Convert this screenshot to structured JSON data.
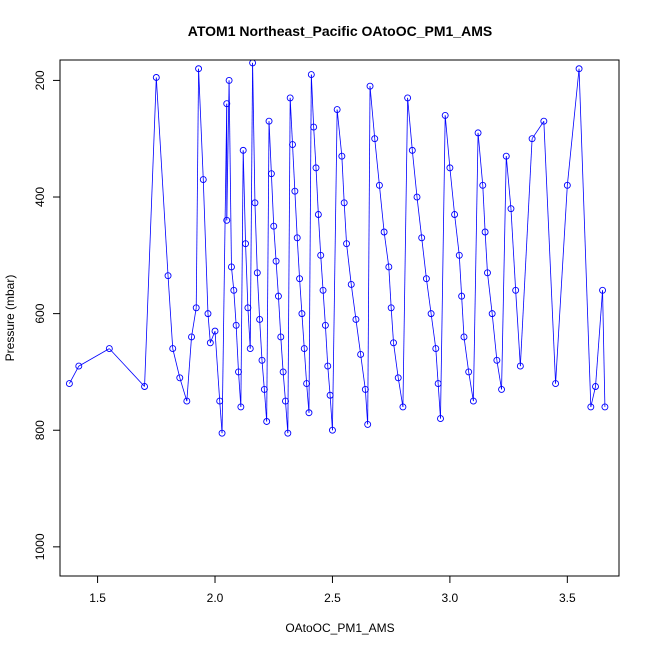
{
  "chart_data": {
    "type": "scatter",
    "title": "ATOM1 Northeast_Pacific OAtoOC_PM1_AMS",
    "xlabel": "OAtoOC_PM1_AMS",
    "ylabel": "Pressure (mbar)",
    "xlim": [
      1.34,
      3.72
    ],
    "ylim": [
      1050,
      165
    ],
    "y_reversed": true,
    "x_ticks": [
      1.5,
      2.0,
      2.5,
      3.0,
      3.5
    ],
    "x_tick_labels": [
      "1.5",
      "2.0",
      "2.5",
      "3.0",
      "3.5"
    ],
    "y_ticks": [
      200,
      400,
      600,
      800,
      1000
    ],
    "y_tick_labels": [
      "200",
      "400",
      "600",
      "800",
      "1000"
    ],
    "grid": false,
    "legend": "none",
    "marker": "open-circle",
    "connected": true,
    "color": "#0000FF",
    "horizontal_segment_color": "#000000",
    "series": [
      {
        "points": [
          [
            1.38,
            720
          ],
          [
            1.42,
            690
          ],
          [
            1.55,
            660
          ],
          [
            1.7,
            725
          ],
          [
            1.75,
            195
          ],
          [
            1.8,
            535
          ],
          [
            1.82,
            660
          ],
          [
            1.85,
            710
          ],
          [
            1.88,
            750
          ],
          [
            1.9,
            640
          ],
          [
            1.92,
            590
          ],
          [
            1.93,
            180
          ],
          [
            1.95,
            370
          ],
          [
            1.97,
            600
          ],
          [
            1.98,
            650
          ],
          [
            2.0,
            630
          ],
          [
            2.02,
            750
          ],
          [
            2.03,
            805
          ],
          [
            2.05,
            240
          ],
          [
            2.05,
            440
          ],
          [
            2.06,
            200
          ],
          [
            2.07,
            520
          ],
          [
            2.08,
            560
          ],
          [
            2.09,
            620
          ],
          [
            2.1,
            700
          ],
          [
            2.11,
            760
          ],
          [
            2.12,
            320
          ],
          [
            2.13,
            480
          ],
          [
            2.14,
            590
          ],
          [
            2.15,
            660
          ],
          [
            2.16,
            170
          ],
          [
            2.17,
            410
          ],
          [
            2.18,
            530
          ],
          [
            2.19,
            610
          ],
          [
            2.2,
            680
          ],
          [
            2.21,
            730
          ],
          [
            2.22,
            785
          ],
          [
            2.23,
            270
          ],
          [
            2.24,
            360
          ],
          [
            2.25,
            450
          ],
          [
            2.26,
            510
          ],
          [
            2.27,
            570
          ],
          [
            2.28,
            640
          ],
          [
            2.29,
            700
          ],
          [
            2.3,
            750
          ],
          [
            2.31,
            805
          ],
          [
            2.32,
            230
          ],
          [
            2.33,
            310
          ],
          [
            2.34,
            390
          ],
          [
            2.35,
            470
          ],
          [
            2.36,
            540
          ],
          [
            2.37,
            600
          ],
          [
            2.38,
            660
          ],
          [
            2.39,
            720
          ],
          [
            2.4,
            770
          ],
          [
            2.41,
            190
          ],
          [
            2.42,
            280
          ],
          [
            2.43,
            350
          ],
          [
            2.44,
            430
          ],
          [
            2.45,
            500
          ],
          [
            2.46,
            560
          ],
          [
            2.47,
            620
          ],
          [
            2.48,
            690
          ],
          [
            2.49,
            740
          ],
          [
            2.5,
            800
          ],
          [
            2.52,
            250
          ],
          [
            2.54,
            330
          ],
          [
            2.55,
            410
          ],
          [
            2.56,
            480
          ],
          [
            2.58,
            550
          ],
          [
            2.6,
            610
          ],
          [
            2.62,
            670
          ],
          [
            2.64,
            730
          ],
          [
            2.65,
            790
          ],
          [
            2.66,
            210
          ],
          [
            2.68,
            300
          ],
          [
            2.7,
            380
          ],
          [
            2.72,
            460
          ],
          [
            2.74,
            520
          ],
          [
            2.75,
            590
          ],
          [
            2.76,
            650
          ],
          [
            2.78,
            710
          ],
          [
            2.8,
            760
          ],
          [
            2.82,
            230
          ],
          [
            2.84,
            320
          ],
          [
            2.86,
            400
          ],
          [
            2.88,
            470
          ],
          [
            2.9,
            540
          ],
          [
            2.92,
            600
          ],
          [
            2.94,
            660
          ],
          [
            2.95,
            720
          ],
          [
            2.96,
            780
          ],
          [
            2.98,
            260
          ],
          [
            3.0,
            350
          ],
          [
            3.02,
            430
          ],
          [
            3.04,
            500
          ],
          [
            3.05,
            570
          ],
          [
            3.06,
            640
          ],
          [
            3.08,
            700
          ],
          [
            3.1,
            750
          ],
          [
            3.12,
            290
          ],
          [
            3.14,
            380
          ],
          [
            3.15,
            460
          ],
          [
            3.16,
            530
          ],
          [
            3.18,
            600
          ],
          [
            3.2,
            680
          ],
          [
            3.22,
            730
          ],
          [
            3.24,
            330
          ],
          [
            3.26,
            420
          ],
          [
            3.28,
            560
          ],
          [
            3.3,
            690
          ],
          [
            3.35,
            300
          ],
          [
            3.4,
            270
          ],
          [
            3.45,
            720
          ],
          [
            3.5,
            380
          ],
          [
            3.55,
            180
          ],
          [
            3.6,
            760
          ],
          [
            3.62,
            725
          ],
          [
            3.65,
            560
          ],
          [
            3.66,
            760
          ]
        ]
      }
    ]
  }
}
